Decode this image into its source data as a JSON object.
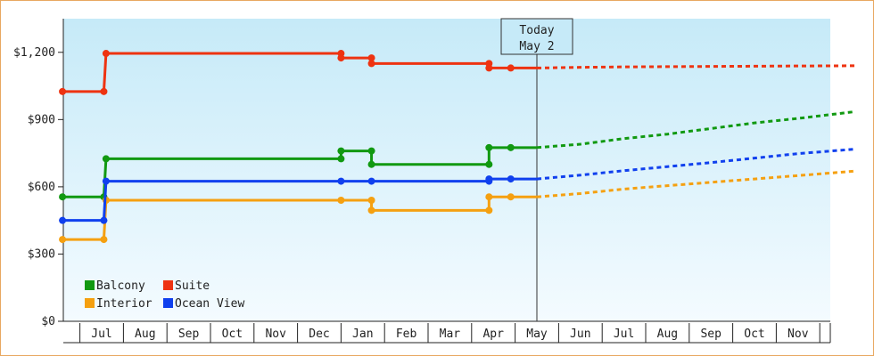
{
  "chart_data": {
    "type": "line",
    "title": "",
    "xlabel": "",
    "ylabel": "",
    "ylim": [
      0,
      1350
    ],
    "yticks": [
      0,
      300,
      600,
      900,
      1200
    ],
    "ytick_labels": [
      "$0",
      "$300",
      "$600",
      "$900",
      "$1,200"
    ],
    "month_labels": [
      "Jul",
      "Aug",
      "Sep",
      "Oct",
      "Nov",
      "Dec",
      "Jan",
      "Feb",
      "Mar",
      "Apr",
      "May",
      "Jun",
      "Jul",
      "Aug",
      "Sep",
      "Oct",
      "Nov"
    ],
    "today_marker": {
      "line1": "Today",
      "line2": "May 2",
      "x": 10.0
    },
    "grid": false,
    "legend_position": "bottom-left",
    "series": [
      {
        "name": "Balcony",
        "color": "#119911",
        "history": [
          [
            -0.9,
            555
          ],
          [
            0.05,
            555
          ],
          [
            0.1,
            725
          ],
          [
            5.5,
            725
          ],
          [
            5.5,
            760
          ],
          [
            6.2,
            760
          ],
          [
            6.2,
            700
          ],
          [
            8.9,
            700
          ],
          [
            8.9,
            775
          ],
          [
            9.4,
            775
          ],
          [
            10.0,
            775
          ]
        ],
        "points": [
          [
            -0.9,
            555
          ],
          [
            0.05,
            555
          ],
          [
            0.1,
            725
          ],
          [
            5.5,
            725
          ],
          [
            5.5,
            760
          ],
          [
            6.2,
            760
          ],
          [
            6.2,
            700
          ],
          [
            8.9,
            700
          ],
          [
            8.9,
            775
          ],
          [
            9.4,
            775
          ]
        ],
        "forecast": [
          [
            10.0,
            775
          ],
          [
            11.0,
            790
          ],
          [
            12.0,
            815
          ],
          [
            13.0,
            835
          ],
          [
            14.0,
            860
          ],
          [
            15.0,
            885
          ],
          [
            16.0,
            905
          ],
          [
            17.3,
            935
          ]
        ]
      },
      {
        "name": "Suite",
        "color": "#ee3311",
        "history": [
          [
            -0.9,
            1025
          ],
          [
            0.05,
            1025
          ],
          [
            0.1,
            1195
          ],
          [
            5.5,
            1195
          ],
          [
            5.5,
            1175
          ],
          [
            6.2,
            1175
          ],
          [
            6.2,
            1150
          ],
          [
            8.9,
            1150
          ],
          [
            8.9,
            1130
          ],
          [
            9.4,
            1130
          ],
          [
            10.0,
            1130
          ]
        ],
        "points": [
          [
            -0.9,
            1025
          ],
          [
            0.05,
            1025
          ],
          [
            0.1,
            1195
          ],
          [
            5.5,
            1195
          ],
          [
            5.5,
            1175
          ],
          [
            6.2,
            1175
          ],
          [
            6.2,
            1150
          ],
          [
            8.9,
            1150
          ],
          [
            8.9,
            1130
          ],
          [
            9.4,
            1130
          ]
        ],
        "forecast": [
          [
            10.0,
            1130
          ],
          [
            11.0,
            1133
          ],
          [
            12.0,
            1135
          ],
          [
            13.0,
            1136
          ],
          [
            14.0,
            1137
          ],
          [
            15.0,
            1138
          ],
          [
            16.0,
            1139
          ],
          [
            17.3,
            1140
          ]
        ]
      },
      {
        "name": "Interior",
        "color": "#f5a010",
        "history": [
          [
            -0.9,
            365
          ],
          [
            0.05,
            365
          ],
          [
            0.1,
            540
          ],
          [
            5.5,
            540
          ],
          [
            6.2,
            540
          ],
          [
            6.2,
            495
          ],
          [
            8.9,
            495
          ],
          [
            8.9,
            555
          ],
          [
            9.4,
            555
          ],
          [
            10.0,
            555
          ]
        ],
        "points": [
          [
            -0.9,
            365
          ],
          [
            0.05,
            365
          ],
          [
            0.1,
            540
          ],
          [
            5.5,
            540
          ],
          [
            6.2,
            540
          ],
          [
            6.2,
            495
          ],
          [
            8.9,
            495
          ],
          [
            8.9,
            555
          ],
          [
            9.4,
            555
          ]
        ],
        "forecast": [
          [
            10.0,
            555
          ],
          [
            11.0,
            570
          ],
          [
            12.0,
            590
          ],
          [
            13.0,
            605
          ],
          [
            14.0,
            620
          ],
          [
            15.0,
            635
          ],
          [
            16.0,
            650
          ],
          [
            17.3,
            670
          ]
        ]
      },
      {
        "name": "Ocean View",
        "color": "#1040ee",
        "history": [
          [
            -0.9,
            450
          ],
          [
            0.05,
            450
          ],
          [
            0.1,
            625
          ],
          [
            5.5,
            625
          ],
          [
            6.2,
            625
          ],
          [
            8.9,
            625
          ],
          [
            8.9,
            635
          ],
          [
            9.4,
            635
          ],
          [
            10.0,
            635
          ]
        ],
        "points": [
          [
            -0.9,
            450
          ],
          [
            0.05,
            450
          ],
          [
            0.1,
            625
          ],
          [
            5.5,
            625
          ],
          [
            6.2,
            625
          ],
          [
            8.9,
            625
          ],
          [
            8.9,
            635
          ],
          [
            9.4,
            635
          ]
        ],
        "forecast": [
          [
            10.0,
            635
          ],
          [
            11.0,
            652
          ],
          [
            12.0,
            672
          ],
          [
            13.0,
            690
          ],
          [
            14.0,
            708
          ],
          [
            15.0,
            728
          ],
          [
            16.0,
            748
          ],
          [
            17.3,
            768
          ]
        ]
      }
    ]
  }
}
